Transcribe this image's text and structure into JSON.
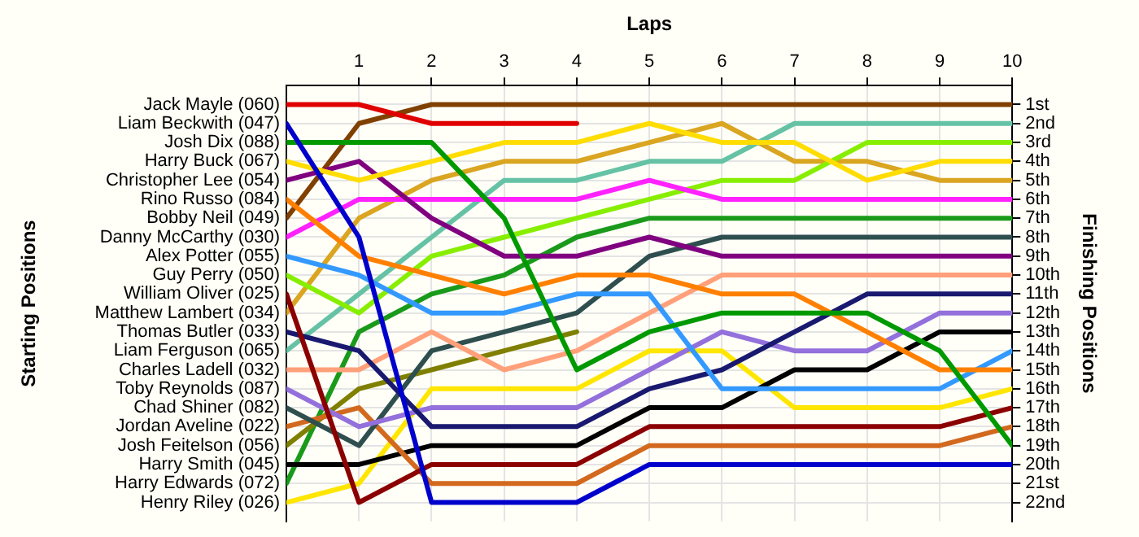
{
  "chart_data": {
    "type": "line",
    "xlabel": "Laps",
    "annotations": [
      "Starting Positions"
    ],
    "y2label": "Finishing Positions",
    "x": [
      0,
      1,
      2,
      3,
      4,
      5,
      6,
      7,
      8,
      9,
      10
    ],
    "xlim": [
      0,
      10
    ],
    "xticks": [
      1,
      2,
      3,
      4,
      5,
      6,
      7,
      8,
      9,
      10
    ],
    "y2lim": [
      23,
      0
    ],
    "y2ticks": [
      {
        "value": 1,
        "label": "1st"
      },
      {
        "value": 2,
        "label": "2nd"
      },
      {
        "value": 3,
        "label": "3rd"
      },
      {
        "value": 4,
        "label": "4th"
      },
      {
        "value": 5,
        "label": "5th"
      },
      {
        "value": 6,
        "label": "6th"
      },
      {
        "value": 7,
        "label": "7th"
      },
      {
        "value": 8,
        "label": "8th"
      },
      {
        "value": 9,
        "label": "9th"
      },
      {
        "value": 10,
        "label": "10th"
      },
      {
        "value": 11,
        "label": "11th"
      },
      {
        "value": 12,
        "label": "12th"
      },
      {
        "value": 13,
        "label": "13th"
      },
      {
        "value": 14,
        "label": "14th"
      },
      {
        "value": 15,
        "label": "15th"
      },
      {
        "value": 16,
        "label": "16th"
      },
      {
        "value": 17,
        "label": "17th"
      },
      {
        "value": 18,
        "label": "18th"
      },
      {
        "value": 19,
        "label": "19th"
      },
      {
        "value": 20,
        "label": "20th"
      },
      {
        "value": 21,
        "label": "21st"
      },
      {
        "value": 22,
        "label": "22nd"
      }
    ],
    "grid": true,
    "legend": "left",
    "marker": "none",
    "line_style": "solid",
    "series": [
      {
        "name": "Jack Mayle (060)",
        "axis": "y2",
        "color": "#e00000",
        "values": [
          1,
          1,
          2,
          2,
          2,
          null,
          null,
          null,
          null,
          null,
          null
        ]
      },
      {
        "name": "Liam Beckwith (047)",
        "axis": "y2",
        "color": "#0000cc",
        "values": [
          2,
          8,
          22,
          22,
          22,
          20,
          20,
          20,
          20,
          20,
          20
        ]
      },
      {
        "name": "Josh Dix (088)",
        "axis": "y2",
        "color": "#009900",
        "values": [
          3,
          3,
          3,
          7,
          15,
          13,
          12,
          12,
          12,
          14,
          19
        ]
      },
      {
        "name": "Harry Buck (067)",
        "axis": "y2",
        "color": "#ffdd00",
        "values": [
          4,
          5,
          4,
          3,
          3,
          2,
          3,
          3,
          5,
          4,
          4
        ]
      },
      {
        "name": "Christopher Lee (054)",
        "axis": "y2",
        "color": "#800080",
        "values": [
          5,
          4,
          7,
          9,
          9,
          8,
          9,
          9,
          9,
          9,
          9
        ]
      },
      {
        "name": "Rino Russo (084)",
        "axis": "y2",
        "color": "#ff8000",
        "values": [
          6,
          9,
          10,
          11,
          10,
          10,
          11,
          11,
          13,
          15,
          15
        ]
      },
      {
        "name": "Bobby Neil (049)",
        "axis": "y2",
        "color": "#804000",
        "values": [
          7,
          2,
          1,
          1,
          1,
          1,
          1,
          1,
          1,
          1,
          1
        ]
      },
      {
        "name": "Danny McCarthy (030)",
        "axis": "y2",
        "color": "#ff22ff",
        "values": [
          8,
          6,
          6,
          6,
          6,
          5,
          6,
          6,
          6,
          6,
          6
        ]
      },
      {
        "name": "Alex Potter (055)",
        "axis": "y2",
        "color": "#3399ff",
        "values": [
          9,
          10,
          12,
          12,
          11,
          11,
          16,
          16,
          16,
          16,
          14
        ]
      },
      {
        "name": "Guy Perry (050)",
        "axis": "y2",
        "color": "#88ee00",
        "values": [
          10,
          12,
          9,
          8,
          7,
          6,
          5,
          5,
          3,
          3,
          3
        ]
      },
      {
        "name": "William Oliver (025)",
        "axis": "y2",
        "color": "#8b0000",
        "values": [
          11,
          22,
          20,
          20,
          20,
          18,
          18,
          18,
          18,
          18,
          17
        ]
      },
      {
        "name": "Matthew Lambert (034)",
        "axis": "y2",
        "color": "#daa520",
        "values": [
          12,
          7,
          5,
          4,
          4,
          3,
          2,
          4,
          4,
          5,
          5
        ]
      },
      {
        "name": "Thomas Butler (033)",
        "axis": "y2",
        "color": "#191970",
        "values": [
          13,
          14,
          18,
          18,
          18,
          16,
          15,
          13,
          11,
          11,
          11
        ]
      },
      {
        "name": "Liam Ferguson (065)",
        "axis": "y2",
        "color": "#66c2a5",
        "values": [
          14,
          11,
          8,
          5,
          5,
          4,
          4,
          2,
          2,
          2,
          2
        ]
      },
      {
        "name": "Charles Ladell (032)",
        "axis": "y2",
        "color": "#ffa07a",
        "values": [
          15,
          15,
          13,
          15,
          14,
          12,
          10,
          10,
          10,
          10,
          10
        ]
      },
      {
        "name": "Toby Reynolds (087)",
        "axis": "y2",
        "color": "#9370db",
        "values": [
          16,
          18,
          17,
          17,
          17,
          15,
          13,
          14,
          14,
          12,
          12
        ]
      },
      {
        "name": "Chad Shiner (082)",
        "axis": "y2",
        "color": "#2f4f4f",
        "values": [
          17,
          19,
          14,
          13,
          12,
          9,
          8,
          8,
          8,
          8,
          8
        ]
      },
      {
        "name": "Jordan Aveline (022)",
        "axis": "y2",
        "color": "#d2691e",
        "values": [
          18,
          17,
          21,
          21,
          21,
          19,
          19,
          19,
          19,
          19,
          18
        ]
      },
      {
        "name": "Josh Feitelson (056)",
        "axis": "y2",
        "color": "#808000",
        "values": [
          19,
          16,
          15,
          14,
          13,
          null,
          null,
          null,
          null,
          null,
          null
        ]
      },
      {
        "name": "Harry Smith (045)",
        "axis": "y2",
        "color": "#000000",
        "values": [
          20,
          20,
          19,
          19,
          19,
          17,
          17,
          15,
          15,
          13,
          13
        ]
      },
      {
        "name": "Harry Edwards (072)",
        "axis": "y2",
        "color": "#1a9a1a",
        "values": [
          21,
          13,
          11,
          10,
          8,
          7,
          7,
          7,
          7,
          7,
          7
        ]
      },
      {
        "name": "Henry Riley (026)",
        "axis": "y2",
        "color": "#ffe600",
        "values": [
          22,
          21,
          16,
          16,
          16,
          14,
          14,
          17,
          17,
          17,
          16
        ]
      }
    ]
  }
}
